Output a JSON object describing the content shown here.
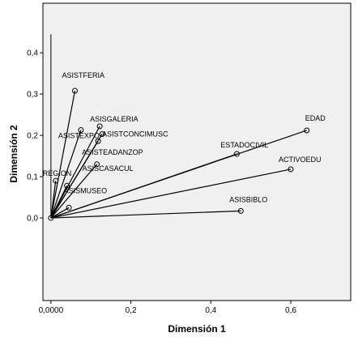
{
  "chart_data": {
    "type": "scatter",
    "xlabel": "Dimensión 1",
    "ylabel": "Dimensión 2",
    "xlim": [
      -0.02,
      0.75
    ],
    "ylim": [
      -0.2,
      0.52
    ],
    "xticks": [
      0.0,
      0.2,
      0.4,
      0.6
    ],
    "xtick_labels": [
      "0,0000",
      "0,2",
      "0,4",
      "0,6"
    ],
    "yticks": [
      0.0,
      0.1,
      0.2,
      0.3,
      0.4
    ],
    "ytick_labels": [
      "0,0",
      "0,1",
      "0,2",
      "0,3",
      "0,4"
    ],
    "grid": false,
    "plot_background": "#f0f0f0",
    "line_color": "#000000",
    "origin": [
      0.0,
      0.0
    ],
    "y_axis_line_top": 0.445,
    "points": [
      {
        "label": "ASISTFERIA",
        "x": 0.06,
        "y": 0.308
      },
      {
        "label": "ASISGALERIA",
        "x": 0.122,
        "y": 0.222
      },
      {
        "label": "ASISTCONCIMUSC",
        "x": 0.128,
        "y": 0.203
      },
      {
        "label": "ASISTEXPO",
        "x": 0.075,
        "y": 0.213
      },
      {
        "label": "ASISTEADANZOP",
        "x": 0.118,
        "y": 0.186
      },
      {
        "label": "ASISCASACUL",
        "x": 0.115,
        "y": 0.13
      },
      {
        "label": "REGION",
        "x": 0.012,
        "y": 0.09
      },
      {
        "label": "ASISMUSEO",
        "x": 0.04,
        "y": 0.078
      },
      {
        "label": "",
        "x": 0.045,
        "y": 0.025
      },
      {
        "label": "ESTADOCIVIL",
        "x": 0.465,
        "y": 0.155
      },
      {
        "label": "EDAD",
        "x": 0.64,
        "y": 0.212
      },
      {
        "label": "ACTIVOEDU",
        "x": 0.6,
        "y": 0.118
      },
      {
        "label": "ASISBIBLO",
        "x": 0.475,
        "y": 0.017
      }
    ]
  }
}
